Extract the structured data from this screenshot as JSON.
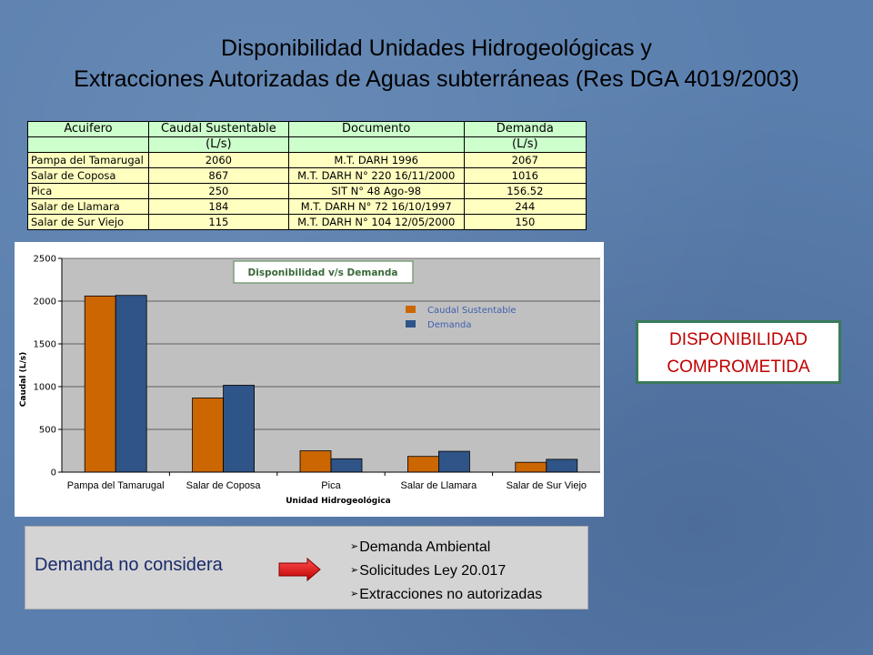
{
  "title": {
    "line1": "Disponibilidad Unidades Hidrogeológicas y",
    "line2": "Extracciones Autorizadas de Aguas subterráneas (Res DGA 4019/2003)"
  },
  "table": {
    "headers": [
      "Acuifero",
      "Caudal Sustentable",
      "Documento",
      "Demanda"
    ],
    "subheaders": [
      "",
      "(L/s)",
      "",
      "(L/s)"
    ],
    "rows": [
      [
        "Pampa del Tamarugal",
        "2060",
        "M.T. DARH 1996",
        "2067"
      ],
      [
        "Salar de Coposa",
        "867",
        "M.T. DARH N° 220 16/11/2000",
        "1016"
      ],
      [
        "Pica",
        "250",
        "SIT N° 48 Ago-98",
        "156.52"
      ],
      [
        "Salar de Llamara",
        "184",
        "M.T. DARH N° 72 16/10/1997",
        "244"
      ],
      [
        "Salar de Sur Viejo",
        "115",
        "M.T. DARH N° 104 12/05/2000",
        "150"
      ]
    ]
  },
  "chart_data": {
    "type": "bar",
    "title": "Disponibilidad v/s Demanda",
    "categories": [
      "Pampa del Tamarugal",
      "Salar de Coposa",
      "Pica",
      "Salar de Llamara",
      "Salar de Sur Viejo"
    ],
    "series": [
      {
        "name": "Caudal Sustentable",
        "values": [
          2060,
          867,
          250,
          184,
          115
        ],
        "color": "#cc6600"
      },
      {
        "name": "Demanda",
        "values": [
          2067,
          1016,
          156.52,
          244,
          150
        ],
        "color": "#2f5487"
      }
    ],
    "xlabel": "Unidad Hidrogeológica",
    "ylabel": "Caudal (L/s)",
    "ylim": [
      0,
      2500
    ],
    "yticks": [
      0,
      500,
      1000,
      1500,
      2000,
      2500
    ],
    "grid": true,
    "legend_position": "top-right"
  },
  "callout": {
    "line1": "DISPONIBILIDAD",
    "line2": "COMPROMETIDA"
  },
  "note": {
    "label": "Demanda no considera",
    "items": [
      "Demanda Ambiental",
      "Solicitudes Ley 20.017",
      "Extracciones no autorizadas"
    ],
    "arrow_color": "#e02020"
  }
}
